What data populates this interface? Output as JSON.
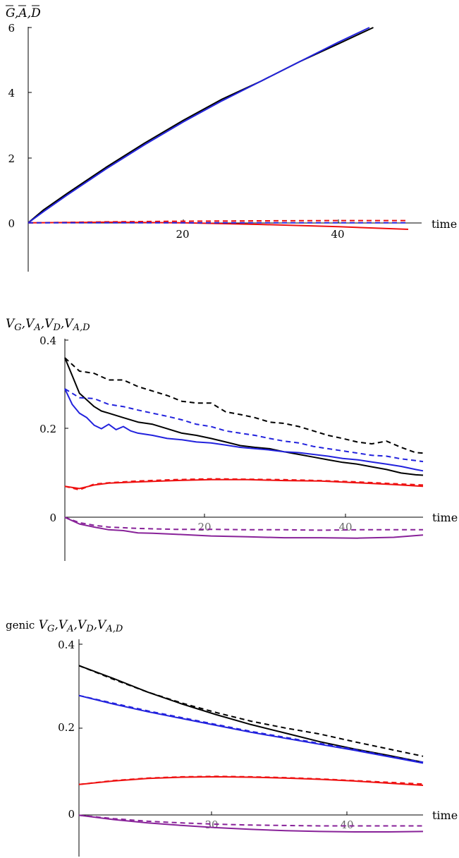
{
  "chart_data": [
    {
      "type": "line",
      "ylabel_parts": [
        "G",
        "A",
        "D"
      ],
      "ylabel_overline": true,
      "xlabel": "time",
      "xlim": [
        0,
        49
      ],
      "ylim": [
        -1.5,
        6
      ],
      "xticks": [
        "20",
        "40"
      ],
      "yticks": [
        "0",
        "2",
        "4",
        "6"
      ],
      "series": [
        {
          "color": "#000000",
          "dash": false,
          "x": [
            0,
            2,
            5,
            10,
            15,
            20,
            25,
            30,
            35,
            40,
            44.5
          ],
          "y": [
            0,
            0.4,
            0.9,
            1.7,
            2.45,
            3.15,
            3.8,
            4.35,
            4.95,
            5.5,
            6.0
          ]
        },
        {
          "color": "#2222dd",
          "dash": false,
          "x": [
            0,
            2,
            5,
            10,
            15,
            20,
            25,
            30,
            35,
            40,
            44
          ],
          "y": [
            0,
            0.35,
            0.85,
            1.65,
            2.4,
            3.1,
            3.75,
            4.35,
            4.95,
            5.55,
            6.0
          ]
        },
        {
          "color": "#ee1111",
          "dash": false,
          "x": [
            0,
            10,
            20,
            30,
            40,
            49
          ],
          "y": [
            0,
            0.02,
            0.0,
            -0.05,
            -0.12,
            -0.2
          ]
        },
        {
          "color": "#ee1111",
          "dash": true,
          "x": [
            0,
            10,
            20,
            30,
            40,
            49
          ],
          "y": [
            0,
            0.03,
            0.05,
            0.06,
            0.07,
            0.07
          ]
        },
        {
          "color": "#2222dd",
          "dash": true,
          "x": [
            0,
            10,
            20,
            30,
            40,
            49
          ],
          "y": [
            0,
            0.0,
            0.0,
            0.0,
            0.0,
            0.0
          ]
        }
      ]
    },
    {
      "type": "line",
      "ylabel_parts": [
        "V",
        "G",
        "V",
        "A",
        "V",
        "D",
        "V",
        "A,D"
      ],
      "xlabel": "time",
      "xlim": [
        0,
        49
      ],
      "ylim": [
        -0.1,
        0.4
      ],
      "xticks": [
        "20",
        "40"
      ],
      "yticks": [
        "0",
        "0.2",
        "0.4"
      ],
      "series": [
        {
          "color": "#000000",
          "dash": true,
          "x": [
            0,
            2,
            4,
            6,
            8,
            10,
            12,
            14,
            16,
            18,
            20,
            22,
            24,
            26,
            28,
            30,
            32,
            34,
            36,
            38,
            40,
            42,
            44,
            46,
            48,
            49
          ],
          "y": [
            0.36,
            0.33,
            0.325,
            0.31,
            0.31,
            0.295,
            0.285,
            0.275,
            0.262,
            0.258,
            0.258,
            0.238,
            0.232,
            0.225,
            0.215,
            0.212,
            0.205,
            0.195,
            0.185,
            0.178,
            0.17,
            0.166,
            0.172,
            0.158,
            0.146,
            0.145
          ]
        },
        {
          "color": "#000000",
          "dash": false,
          "x": [
            0,
            1,
            2,
            3,
            4,
            5,
            6,
            8,
            10,
            12,
            14,
            16,
            18,
            20,
            22,
            24,
            26,
            28,
            30,
            32,
            34,
            36,
            38,
            40,
            42,
            44,
            46,
            48,
            49
          ],
          "y": [
            0.36,
            0.32,
            0.28,
            0.265,
            0.25,
            0.24,
            0.235,
            0.225,
            0.215,
            0.21,
            0.2,
            0.19,
            0.185,
            0.178,
            0.17,
            0.162,
            0.158,
            0.155,
            0.148,
            0.142,
            0.136,
            0.13,
            0.124,
            0.12,
            0.114,
            0.108,
            0.1,
            0.096,
            0.095
          ]
        },
        {
          "color": "#2222dd",
          "dash": true,
          "x": [
            0,
            2,
            4,
            6,
            8,
            10,
            12,
            14,
            16,
            18,
            20,
            22,
            24,
            26,
            28,
            30,
            32,
            34,
            36,
            38,
            40,
            42,
            44,
            46,
            48,
            49
          ],
          "y": [
            0.29,
            0.27,
            0.268,
            0.255,
            0.25,
            0.242,
            0.235,
            0.228,
            0.22,
            0.21,
            0.205,
            0.195,
            0.19,
            0.185,
            0.178,
            0.172,
            0.168,
            0.16,
            0.155,
            0.15,
            0.145,
            0.14,
            0.138,
            0.132,
            0.128,
            0.126
          ]
        },
        {
          "color": "#2222dd",
          "dash": false,
          "x": [
            0,
            1,
            2,
            3,
            4,
            5,
            6,
            7,
            8,
            9,
            10,
            12,
            14,
            16,
            18,
            20,
            22,
            24,
            26,
            28,
            30,
            32,
            34,
            36,
            38,
            40,
            42,
            44,
            46,
            48,
            49
          ],
          "y": [
            0.29,
            0.255,
            0.235,
            0.225,
            0.208,
            0.2,
            0.21,
            0.198,
            0.205,
            0.195,
            0.19,
            0.185,
            0.178,
            0.175,
            0.17,
            0.168,
            0.163,
            0.158,
            0.155,
            0.152,
            0.148,
            0.146,
            0.142,
            0.138,
            0.133,
            0.13,
            0.125,
            0.12,
            0.115,
            0.108,
            0.105
          ]
        },
        {
          "color": "#ee1111",
          "dash": false,
          "x": [
            0,
            2,
            4,
            6,
            10,
            15,
            20,
            25,
            30,
            35,
            40,
            45,
            49
          ],
          "y": [
            0.07,
            0.065,
            0.073,
            0.077,
            0.08,
            0.083,
            0.085,
            0.085,
            0.083,
            0.082,
            0.078,
            0.074,
            0.07
          ]
        },
        {
          "color": "#ee1111",
          "dash": true,
          "x": [
            0,
            2,
            4,
            6,
            10,
            15,
            20,
            25,
            30,
            35,
            40,
            45,
            49
          ],
          "y": [
            0.07,
            0.062,
            0.075,
            0.078,
            0.082,
            0.085,
            0.087,
            0.086,
            0.085,
            0.083,
            0.08,
            0.076,
            0.073
          ]
        },
        {
          "color": "#882299",
          "dash": true,
          "x": [
            0,
            2,
            4,
            6,
            10,
            15,
            20,
            25,
            30,
            35,
            40,
            45,
            49
          ],
          "y": [
            0,
            -0.012,
            -0.018,
            -0.022,
            -0.025,
            -0.027,
            -0.027,
            -0.028,
            -0.028,
            -0.029,
            -0.028,
            -0.028,
            -0.028
          ]
        },
        {
          "color": "#882299",
          "dash": false,
          "x": [
            0,
            2,
            4,
            6,
            8,
            10,
            12,
            15,
            20,
            25,
            30,
            35,
            40,
            45,
            49
          ],
          "y": [
            0,
            -0.015,
            -0.022,
            -0.028,
            -0.03,
            -0.035,
            -0.036,
            -0.038,
            -0.042,
            -0.044,
            -0.046,
            -0.046,
            -0.047,
            -0.045,
            -0.04
          ]
        }
      ]
    },
    {
      "type": "line",
      "yprefix": "genic",
      "ylabel_parts": [
        "V",
        "G",
        "V",
        "A",
        "V",
        "D",
        "V",
        "A,D"
      ],
      "xlabel": "time",
      "xlim": [
        20,
        45
      ],
      "ylim": [
        -0.1,
        0.4
      ],
      "xticks": [
        "30",
        "40"
      ],
      "yticks": [
        "0",
        "0.2",
        "0.4"
      ],
      "series": [
        {
          "color": "#000000",
          "dash": true,
          "x": [
            20,
            22.5,
            25,
            27.5,
            30,
            32.5,
            35,
            37.5,
            40,
            42.5,
            45
          ],
          "y": [
            0.35,
            0.318,
            0.288,
            0.262,
            0.24,
            0.22,
            0.204,
            0.19,
            0.172,
            0.155,
            0.138
          ]
        },
        {
          "color": "#000000",
          "dash": false,
          "x": [
            20,
            22.5,
            25,
            27.5,
            30,
            32.5,
            35,
            37.5,
            40,
            42.5,
            45
          ],
          "y": [
            0.35,
            0.32,
            0.288,
            0.26,
            0.235,
            0.212,
            0.192,
            0.172,
            0.155,
            0.14,
            0.124
          ]
        },
        {
          "color": "#2222dd",
          "dash": true,
          "x": [
            20,
            22.5,
            25,
            27.5,
            30,
            32.5,
            35,
            37.5,
            40,
            42.5,
            45
          ],
          "y": [
            0.28,
            0.262,
            0.244,
            0.228,
            0.212,
            0.196,
            0.182,
            0.168,
            0.154,
            0.138,
            0.124
          ]
        },
        {
          "color": "#2222dd",
          "dash": false,
          "x": [
            20,
            22.5,
            25,
            27.5,
            30,
            32.5,
            35,
            37.5,
            40,
            42.5,
            45
          ],
          "y": [
            0.28,
            0.26,
            0.242,
            0.226,
            0.21,
            0.194,
            0.18,
            0.166,
            0.152,
            0.137,
            0.122
          ]
        },
        {
          "color": "#ee1111",
          "dash": false,
          "x": [
            20,
            22.5,
            25,
            27.5,
            30,
            32.5,
            35,
            37.5,
            40,
            42.5,
            45
          ],
          "y": [
            0.072,
            0.08,
            0.086,
            0.089,
            0.09,
            0.089,
            0.087,
            0.084,
            0.08,
            0.075,
            0.07
          ]
        },
        {
          "color": "#ee1111",
          "dash": true,
          "x": [
            20,
            22.5,
            25,
            27.5,
            30,
            32.5,
            35,
            37.5,
            40,
            42.5,
            45
          ],
          "y": [
            0.072,
            0.081,
            0.087,
            0.09,
            0.091,
            0.09,
            0.088,
            0.085,
            0.081,
            0.077,
            0.073
          ]
        },
        {
          "color": "#882299",
          "dash": true,
          "x": [
            20,
            22.5,
            25,
            27.5,
            30,
            32.5,
            35,
            37.5,
            40,
            42.5,
            45
          ],
          "y": [
            0,
            -0.008,
            -0.014,
            -0.018,
            -0.021,
            -0.023,
            -0.024,
            -0.025,
            -0.025,
            -0.025,
            -0.025
          ]
        },
        {
          "color": "#882299",
          "dash": false,
          "x": [
            20,
            22.5,
            25,
            27.5,
            30,
            32.5,
            35,
            37.5,
            40,
            42.5,
            45
          ],
          "y": [
            0,
            -0.01,
            -0.018,
            -0.024,
            -0.029,
            -0.033,
            -0.036,
            -0.038,
            -0.039,
            -0.039,
            -0.038
          ]
        }
      ]
    }
  ]
}
